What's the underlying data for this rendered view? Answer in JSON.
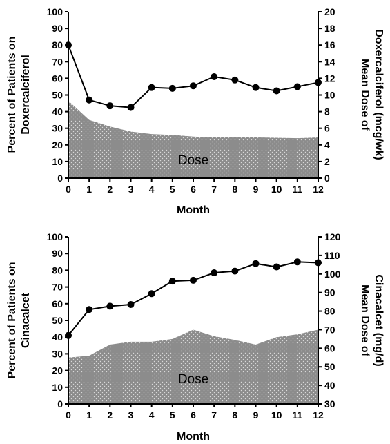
{
  "chart_data": [
    {
      "type": "line",
      "title": "",
      "xlabel": "Month",
      "ylabel": "Percent of Patients on Doxercalciferol",
      "y2label": "Mean Dose of Doxercalciferol (mcg/wk)",
      "area_label": "Dose",
      "x": [
        0,
        1,
        2,
        3,
        4,
        5,
        6,
        7,
        8,
        9,
        10,
        11,
        12
      ],
      "xlim": [
        0,
        12
      ],
      "ylim": [
        0,
        100
      ],
      "y2lim": [
        0,
        20
      ],
      "yticks": [
        0,
        10,
        20,
        30,
        40,
        50,
        60,
        70,
        80,
        90,
        100
      ],
      "y2ticks": [
        0,
        2,
        4,
        6,
        8,
        10,
        12,
        14,
        16,
        18,
        20
      ],
      "series": [
        {
          "axis": "left",
          "style": "line-markers",
          "values": [
            80,
            47,
            43.5,
            42.5,
            54.5,
            54,
            55.5,
            61,
            59,
            54.5,
            52.5,
            55,
            57.5
          ]
        },
        {
          "axis": "right",
          "style": "area",
          "values": [
            9.3,
            7.0,
            6.2,
            5.6,
            5.3,
            5.2,
            5.0,
            4.9,
            4.95,
            4.9,
            4.85,
            4.8,
            4.9
          ]
        }
      ],
      "grid": false,
      "colors": {
        "line": "#000000",
        "area": "#8c8c8c",
        "area_dots": "#d9d9d9"
      }
    },
    {
      "type": "line",
      "title": "",
      "xlabel": "Month",
      "ylabel": "Percent of Patients on Cinacalcet",
      "y2label": "Mean Dose of Cinacalcet (mg/d)",
      "area_label": "Dose",
      "x": [
        0,
        1,
        2,
        3,
        4,
        5,
        6,
        7,
        8,
        9,
        10,
        11,
        12
      ],
      "xlim": [
        0,
        12
      ],
      "ylim": [
        0,
        100
      ],
      "y2lim": [
        30,
        120
      ],
      "yticks": [
        0,
        10,
        20,
        30,
        40,
        50,
        60,
        70,
        80,
        90,
        100
      ],
      "y2ticks": [
        30,
        40,
        50,
        60,
        70,
        80,
        90,
        100,
        110,
        120
      ],
      "series": [
        {
          "axis": "left",
          "style": "line-markers",
          "values": [
            41,
            56.5,
            58.5,
            59.5,
            66,
            73.5,
            74,
            78.5,
            79.5,
            84,
            82,
            85,
            84.5
          ]
        },
        {
          "axis": "right",
          "style": "area",
          "values": [
            55,
            56,
            62,
            63.5,
            63.5,
            65,
            70,
            66.5,
            64.5,
            62,
            66,
            67.5,
            70
          ]
        }
      ],
      "grid": false,
      "colors": {
        "line": "#000000",
        "area": "#8c8c8c",
        "area_dots": "#d9d9d9"
      }
    }
  ]
}
